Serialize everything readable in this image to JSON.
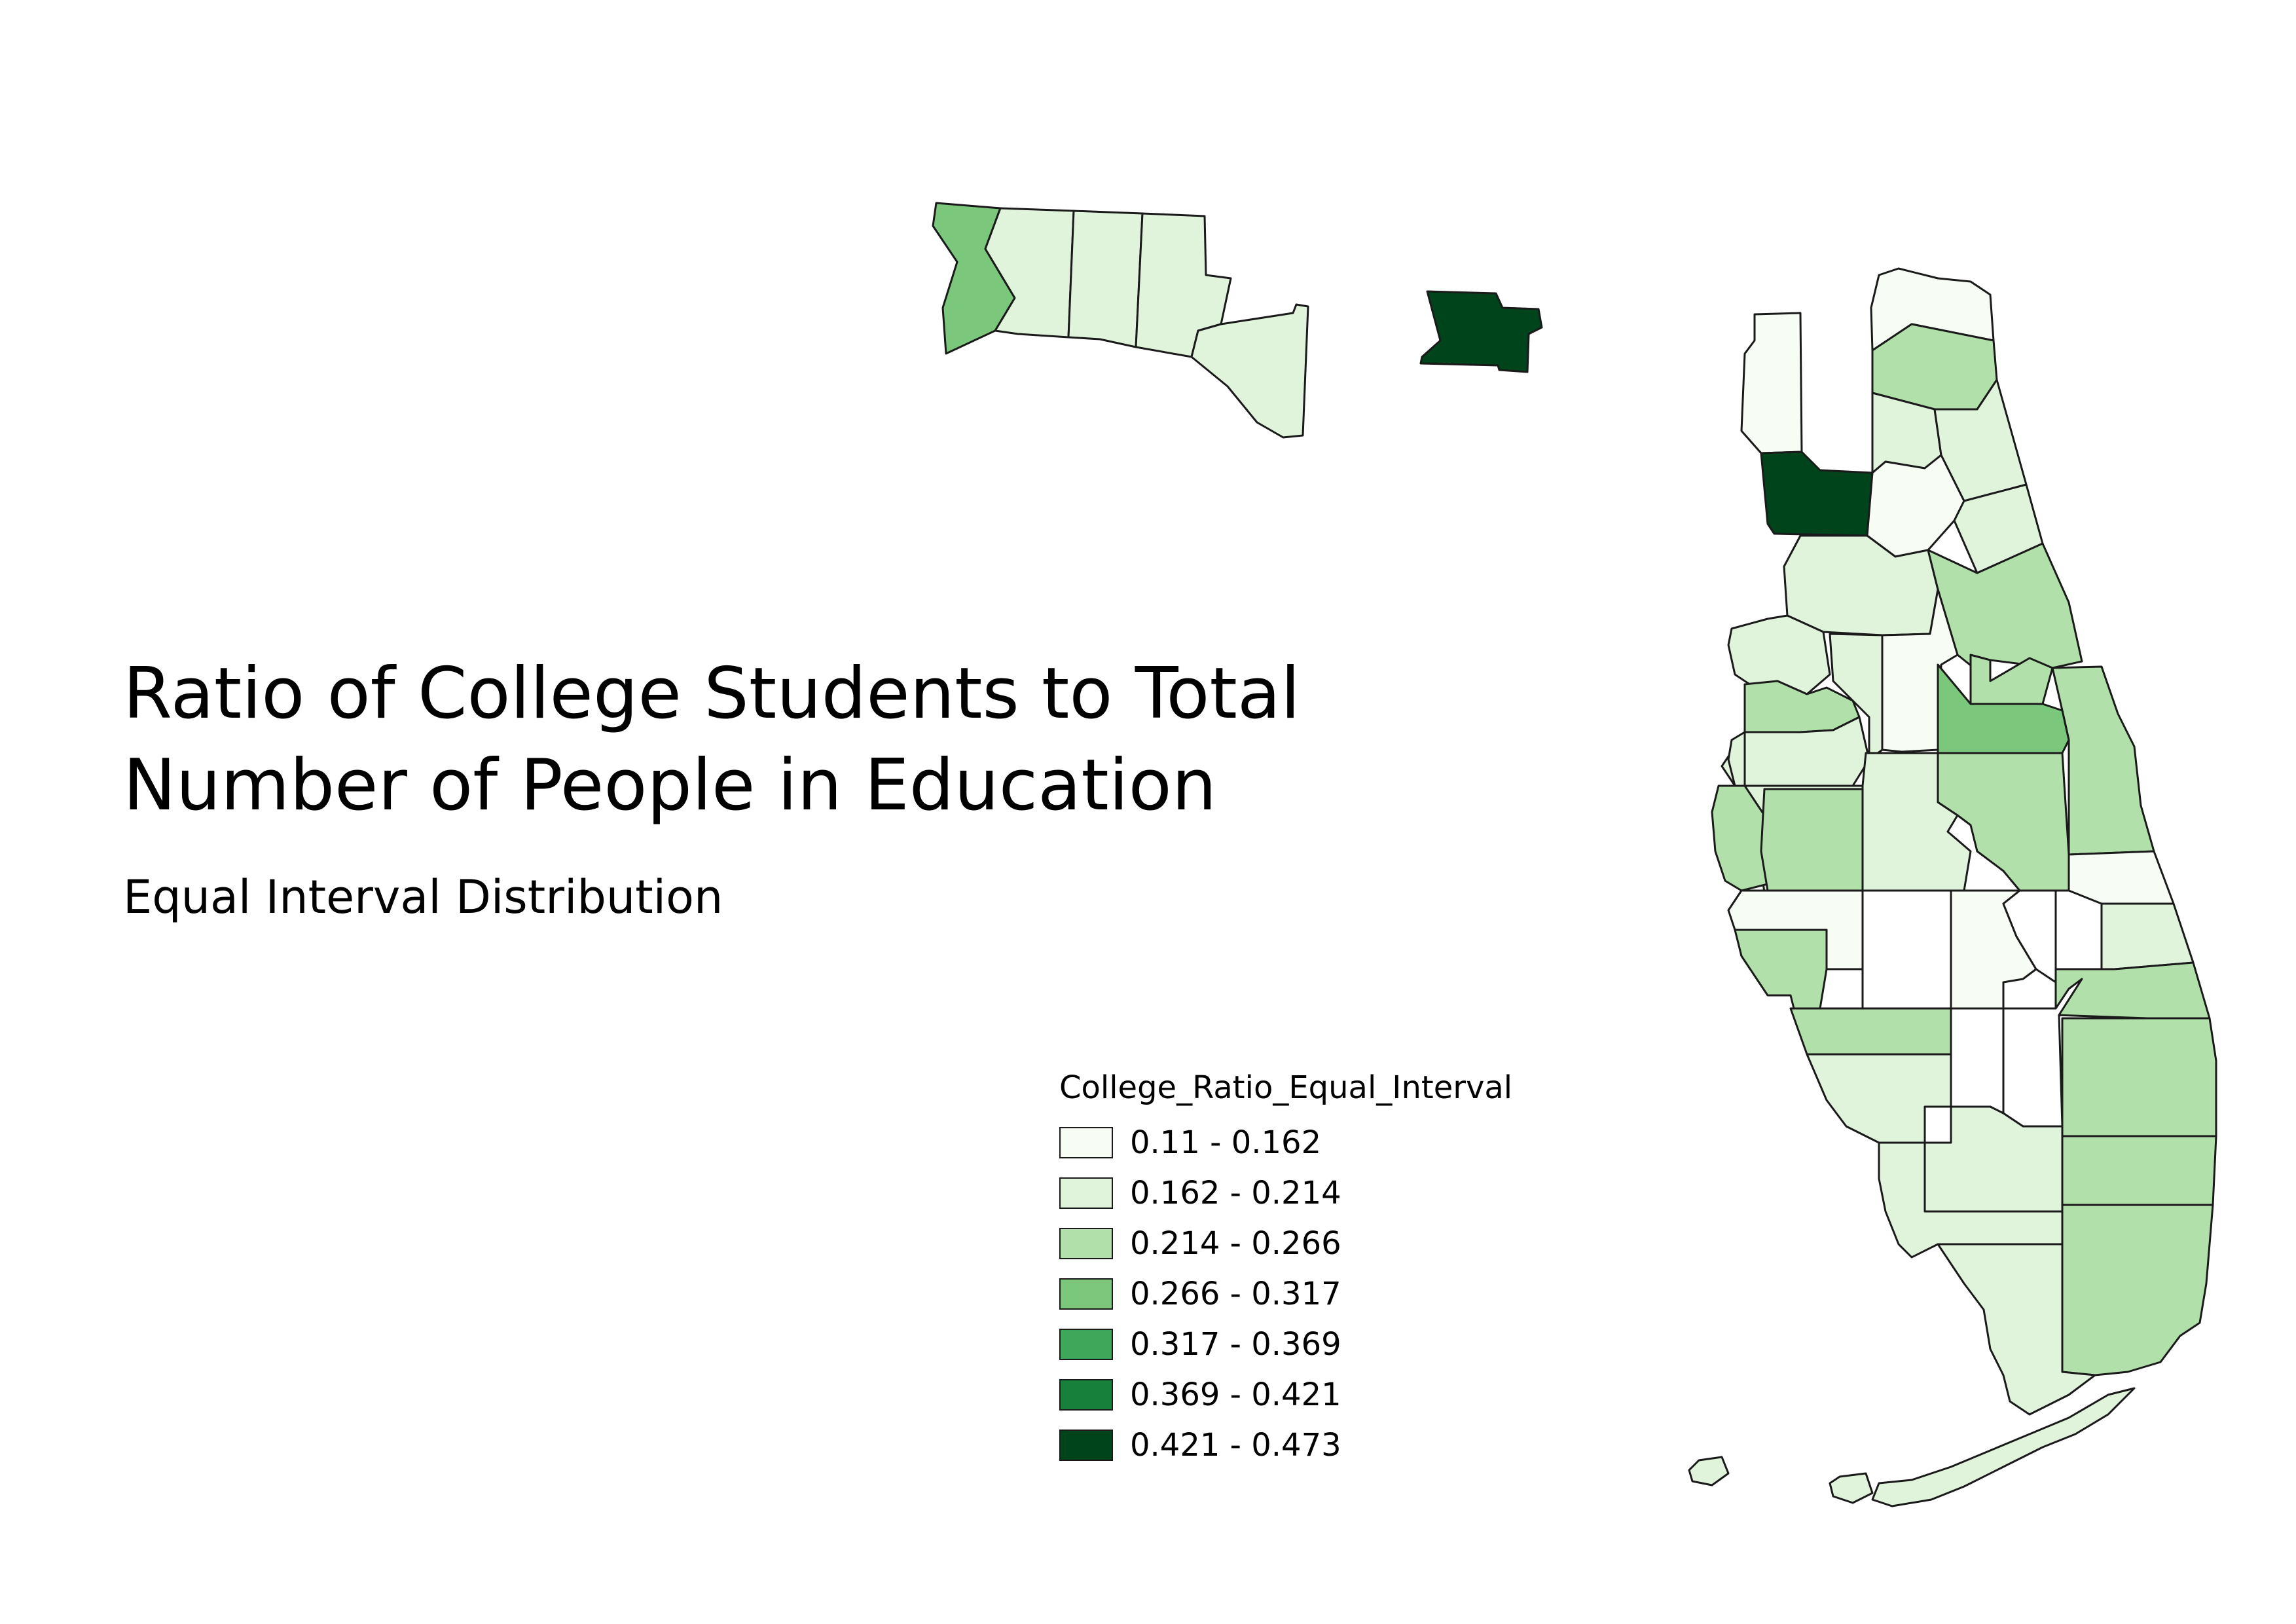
{
  "title": {
    "line1": "Ratio of College Students to Total",
    "line2": "Number of People in Education"
  },
  "subtitle": "Equal Interval Distribution",
  "legend": {
    "title": "College_Ratio_Equal_Interval",
    "classes": [
      {
        "label": "0.11 - 0.162",
        "color": "#f7fcf5"
      },
      {
        "label": "0.162 - 0.214",
        "color": "#e0f3db"
      },
      {
        "label": "0.214 - 0.266",
        "color": "#b2e0ab"
      },
      {
        "label": "0.266 - 0.317",
        "color": "#7bc87c"
      },
      {
        "label": "0.317 - 0.369",
        "color": "#3fa75a"
      },
      {
        "label": "0.369 - 0.421",
        "color": "#17813b"
      },
      {
        "label": "0.421 - 0.473",
        "color": "#00441b"
      }
    ]
  }
}
